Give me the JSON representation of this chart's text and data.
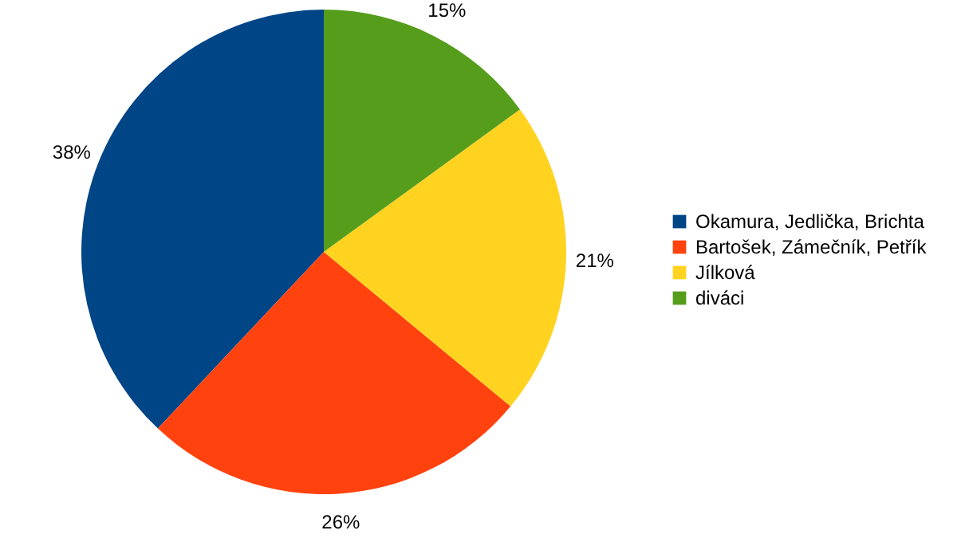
{
  "chart_data": {
    "type": "pie",
    "categories": [
      "Okamura, Jedlička, Brichta",
      "Bartošek, Zámečník, Petřík",
      "Jílková",
      "diváci"
    ],
    "values": [
      38,
      26,
      21,
      15
    ],
    "colors": [
      "#004586",
      "#ff420e",
      "#ffd320",
      "#579d1c"
    ],
    "value_labels": [
      "38%",
      "26%",
      "21%",
      "15%"
    ],
    "legend": "right"
  }
}
